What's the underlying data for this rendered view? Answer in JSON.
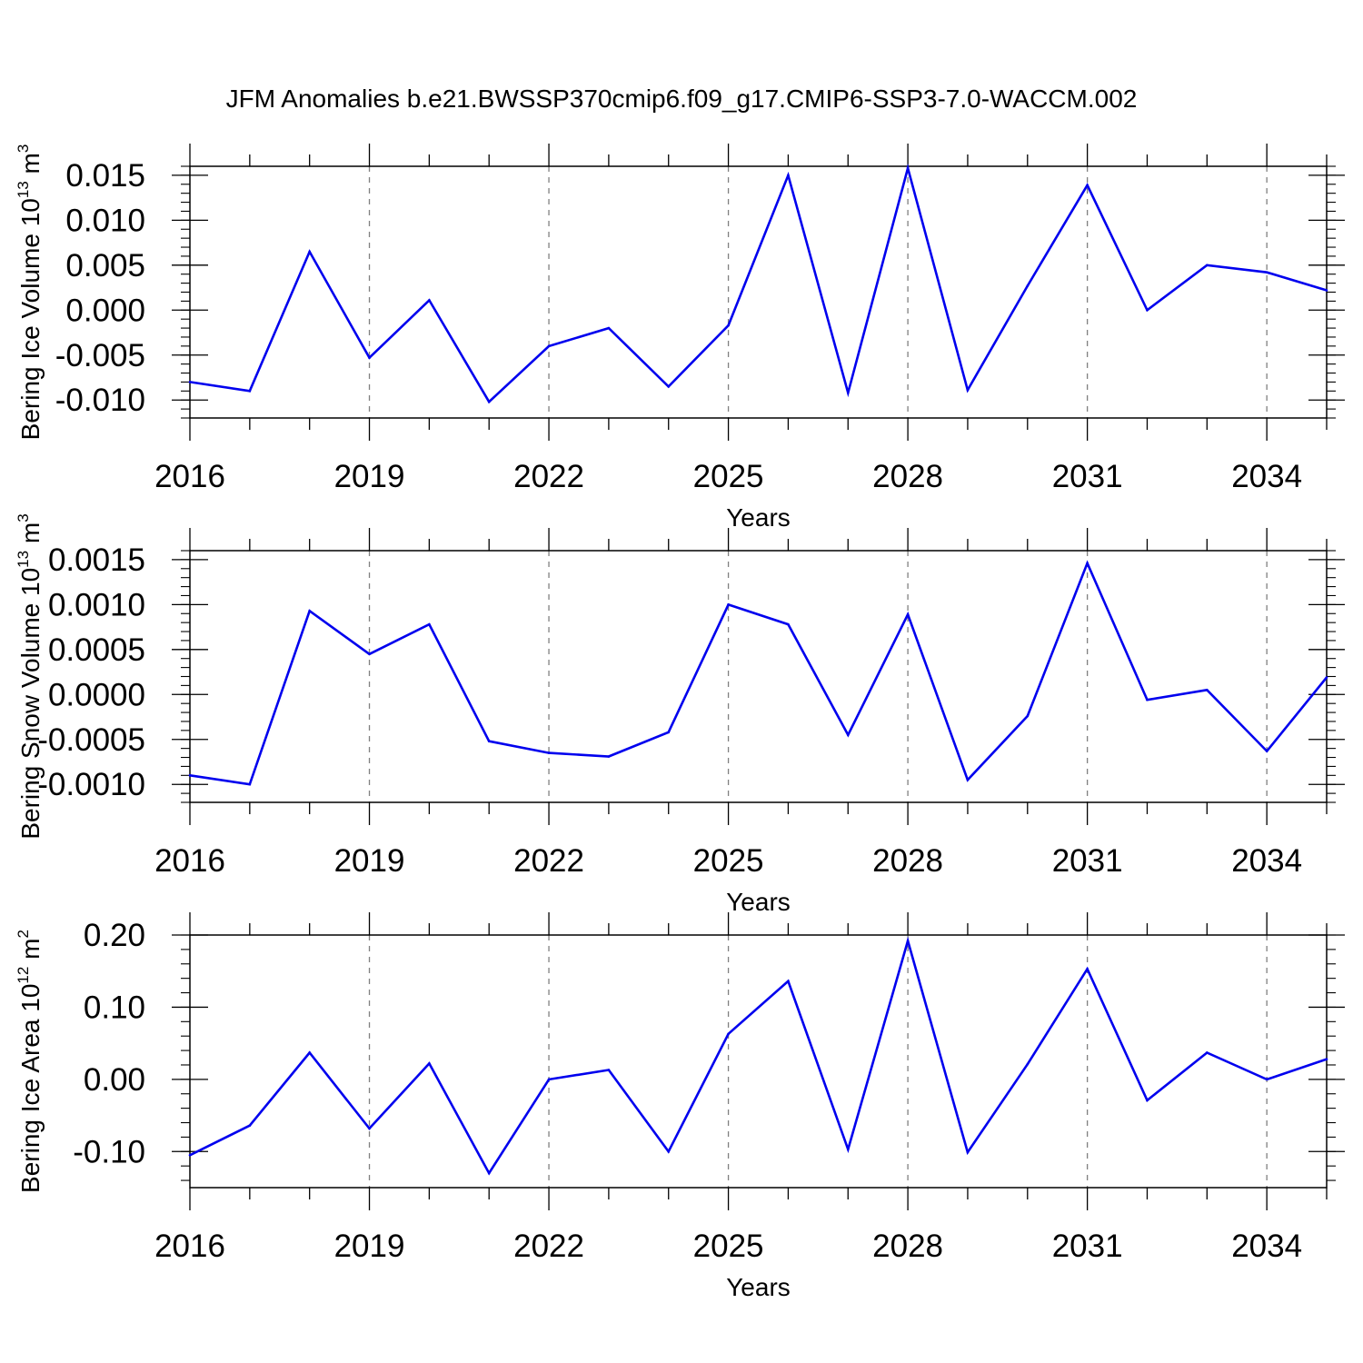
{
  "title": "JFM Anomalies b.e21.BWSSP370cmip6.f09_g17.CMIP6-SSP3-7.0-WACCM.002",
  "colors": {
    "series": "#0000ee",
    "axis": "#000000",
    "grid": "#808080"
  },
  "chart_data": [
    {
      "type": "line",
      "xlabel": "Years",
      "ylabel": {
        "base": "Bering Ice Volume 10",
        "exp": "13",
        "unit": " m",
        "unit_exp": "3"
      },
      "xlim": [
        2016,
        2035
      ],
      "ylim": [
        -0.012,
        0.016
      ],
      "x_ticks": [
        "2016",
        "2019",
        "2022",
        "2025",
        "2028",
        "2031",
        "2034"
      ],
      "y_ticks": [
        {
          "value": -0.01,
          "label": "-0.010"
        },
        {
          "value": -0.005,
          "label": "-0.005"
        },
        {
          "value": 0.0,
          "label": "0.000"
        },
        {
          "value": 0.005,
          "label": "0.005"
        },
        {
          "value": 0.01,
          "label": "0.010"
        },
        {
          "value": 0.015,
          "label": "0.015"
        }
      ],
      "y_minor_step": 0.001,
      "x": [
        2016,
        2017,
        2018,
        2019,
        2020,
        2021,
        2022,
        2023,
        2024,
        2025,
        2026,
        2027,
        2028,
        2029,
        2030,
        2031,
        2032,
        2033,
        2034,
        2035
      ],
      "values": [
        -0.008,
        -0.009,
        0.0065,
        -0.0053,
        0.0011,
        -0.0102,
        -0.004,
        -0.002,
        -0.0085,
        -0.0017,
        0.015,
        -0.0092,
        0.0158,
        -0.0089,
        0.0027,
        0.0139,
        0.0,
        0.005,
        0.0042,
        0.0022
      ]
    },
    {
      "type": "line",
      "xlabel": "Years",
      "ylabel": {
        "base": "Bering Snow Volume 10",
        "exp": "13",
        "unit": " m",
        "unit_exp": "3"
      },
      "xlim": [
        2016,
        2035
      ],
      "ylim": [
        -0.0012,
        0.0016
      ],
      "x_ticks": [
        "2016",
        "2019",
        "2022",
        "2025",
        "2028",
        "2031",
        "2034"
      ],
      "y_ticks": [
        {
          "value": -0.001,
          "label": "-0.0010"
        },
        {
          "value": -0.0005,
          "label": "-0.0005"
        },
        {
          "value": 0.0,
          "label": "0.0000"
        },
        {
          "value": 0.0005,
          "label": "0.0005"
        },
        {
          "value": 0.001,
          "label": "0.0010"
        },
        {
          "value": 0.0015,
          "label": "0.0015"
        }
      ],
      "y_minor_step": 0.0001,
      "x": [
        2016,
        2017,
        2018,
        2019,
        2020,
        2021,
        2022,
        2023,
        2024,
        2025,
        2026,
        2027,
        2028,
        2029,
        2030,
        2031,
        2032,
        2033,
        2034,
        2035
      ],
      "values": [
        -0.0009,
        -0.001,
        0.00093,
        0.00045,
        0.00078,
        -0.00052,
        -0.00065,
        -0.00069,
        -0.00042,
        0.001,
        0.00078,
        -0.00045,
        0.00089,
        -0.00095,
        -0.00024,
        0.00146,
        -6e-05,
        5e-05,
        -0.00063,
        0.00019
      ]
    },
    {
      "type": "line",
      "xlabel": "Years",
      "ylabel": {
        "base": "Bering Ice Area 10",
        "exp": "12",
        "unit": " m",
        "unit_exp": "2"
      },
      "xlim": [
        2016,
        2035
      ],
      "ylim": [
        -0.15,
        0.2
      ],
      "x_ticks": [
        "2016",
        "2019",
        "2022",
        "2025",
        "2028",
        "2031",
        "2034"
      ],
      "y_ticks": [
        {
          "value": -0.1,
          "label": "-0.10"
        },
        {
          "value": 0.0,
          "label": "0.00"
        },
        {
          "value": 0.1,
          "label": "0.10"
        },
        {
          "value": 0.2,
          "label": "0.20"
        }
      ],
      "y_minor_step": 0.02,
      "x": [
        2016,
        2017,
        2018,
        2019,
        2020,
        2021,
        2022,
        2023,
        2024,
        2025,
        2026,
        2027,
        2028,
        2029,
        2030,
        2031,
        2032,
        2033,
        2034,
        2035
      ],
      "values": [
        -0.105,
        -0.064,
        0.037,
        -0.068,
        0.022,
        -0.13,
        0.0,
        0.013,
        -0.1,
        0.063,
        0.136,
        -0.097,
        0.192,
        -0.101,
        0.021,
        0.153,
        -0.029,
        0.037,
        0.0,
        0.028
      ]
    }
  ]
}
